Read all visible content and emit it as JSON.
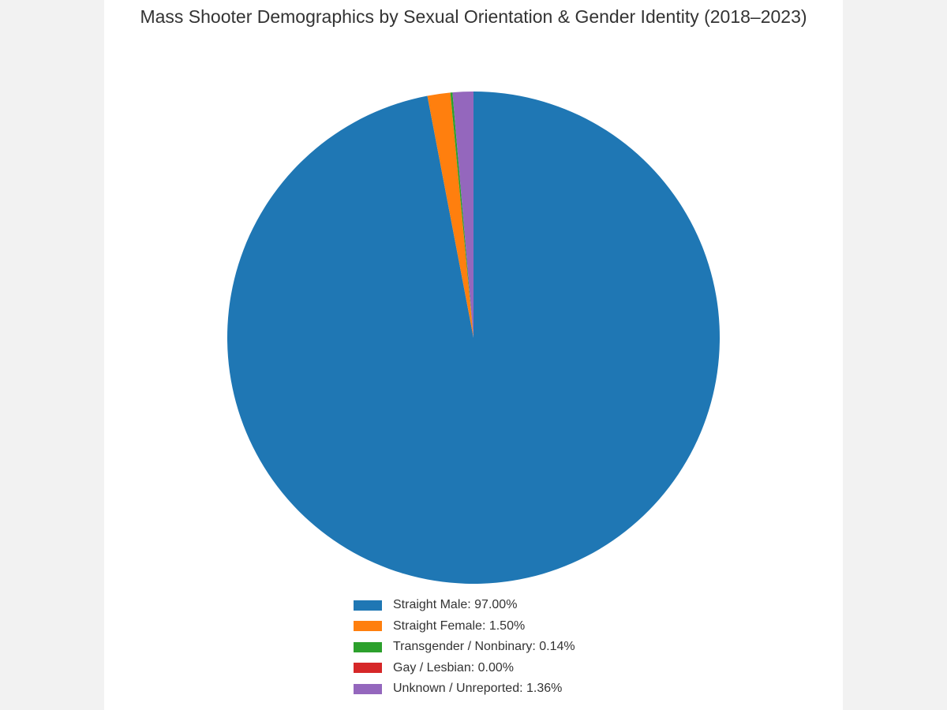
{
  "chart_data": {
    "type": "pie",
    "title": "Mass Shooter Demographics by Sexual Orientation & Gender Identity (2018–2023)",
    "slices": [
      {
        "label": "Straight Male",
        "value": 97.0,
        "color": "#1f77b4",
        "legend_text": "Straight Male: 97.00%"
      },
      {
        "label": "Straight Female",
        "value": 1.5,
        "color": "#ff7f0e",
        "legend_text": "Straight Female: 1.50%"
      },
      {
        "label": "Transgender / Nonbinary",
        "value": 0.14,
        "color": "#2ca02c",
        "legend_text": "Transgender / Nonbinary: 0.14%"
      },
      {
        "label": "Gay / Lesbian",
        "value": 0.0,
        "color": "#d62728",
        "legend_text": "Gay / Lesbian: 0.00%"
      },
      {
        "label": "Unknown / Unreported",
        "value": 1.36,
        "color": "#9467bd",
        "legend_text": "Unknown / Unreported: 1.36%"
      }
    ],
    "legend_position": "bottom"
  }
}
